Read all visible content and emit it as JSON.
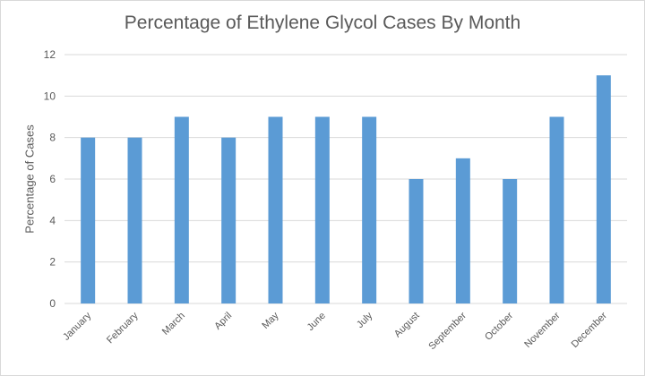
{
  "chart_data": {
    "type": "bar",
    "title": "Percentage of Ethylene Glycol Cases By Month",
    "xlabel": "",
    "ylabel": "Percentage of Cases",
    "categories": [
      "January",
      "February",
      "March",
      "April",
      "May",
      "June",
      "July",
      "August",
      "September",
      "October",
      "November",
      "December"
    ],
    "values": [
      8,
      8,
      9,
      8,
      9,
      9,
      9,
      6,
      7,
      6,
      9,
      11
    ],
    "ylim": [
      0,
      12
    ],
    "yticks": [
      0,
      2,
      4,
      6,
      8,
      10,
      12
    ],
    "grid": true,
    "legend": "none",
    "bar_color": "#5b9bd5",
    "grid_color": "#d9d9d9"
  }
}
